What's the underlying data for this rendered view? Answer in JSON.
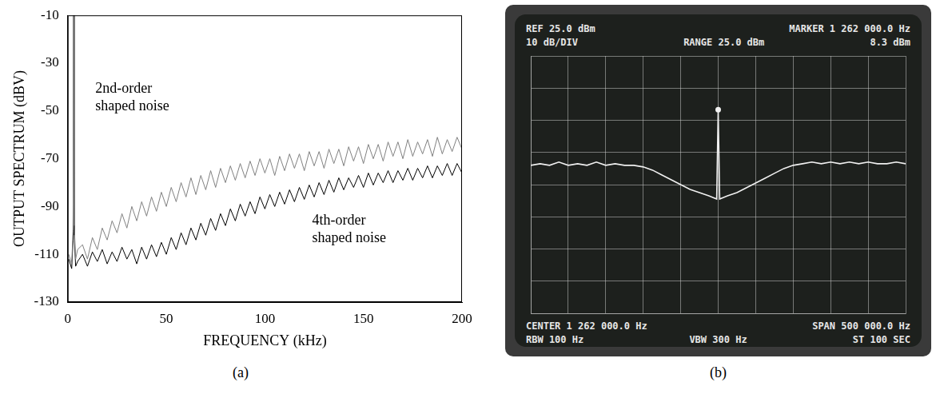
{
  "chart_data": [
    {
      "type": "line",
      "title": "(a)",
      "x_label": "FREQUENCY (kHz)",
      "y_label": "OUTPUT SPECTRUM (dBV)",
      "x": [
        0.5,
        2,
        2.7,
        3,
        3.3,
        4,
        5,
        7.5,
        10,
        12.5,
        15,
        17.5,
        20,
        22.5,
        25,
        27.5,
        30,
        32.5,
        35,
        37.5,
        40,
        42.5,
        45,
        47.5,
        50,
        52.5,
        55,
        57.5,
        60,
        62.5,
        65,
        67.5,
        70,
        72.5,
        75,
        77.5,
        80,
        82.5,
        85,
        87.5,
        90,
        92.5,
        95,
        97.5,
        100,
        102.5,
        105,
        107.5,
        110,
        112.5,
        115,
        117.5,
        120,
        122.5,
        125,
        127.5,
        130,
        132.5,
        135,
        137.5,
        140,
        142.5,
        145,
        147.5,
        150,
        152.5,
        155,
        157.5,
        160,
        162.5,
        165,
        167.5,
        170,
        172.5,
        175,
        177.5,
        180,
        182.5,
        185,
        187.5,
        190,
        192.5,
        195,
        197.5,
        200
      ],
      "series": [
        {
          "name": "2nd-order shaped noise",
          "color": "#808080",
          "values": [
            -110,
            -114,
            -100,
            -10,
            -98,
            -112,
            -108,
            -106,
            -112,
            -103,
            -108,
            -99,
            -104,
            -96,
            -101,
            -93,
            -99,
            -90,
            -96,
            -88,
            -94,
            -86,
            -92,
            -84,
            -90,
            -82,
            -88,
            -80,
            -86,
            -78,
            -85,
            -77,
            -83,
            -75,
            -82,
            -74,
            -80,
            -73,
            -79,
            -72,
            -78,
            -71,
            -77,
            -70,
            -76,
            -70,
            -77,
            -69,
            -75,
            -68,
            -74,
            -68,
            -75,
            -67,
            -73,
            -67,
            -74,
            -66,
            -72,
            -66,
            -73,
            -65,
            -71,
            -65,
            -72,
            -64,
            -70,
            -64,
            -71,
            -63,
            -69,
            -63,
            -70,
            -62,
            -69,
            -63,
            -68,
            -62,
            -69,
            -61,
            -68,
            -62,
            -67,
            -61,
            -66
          ]
        },
        {
          "name": "4th-order shaped noise",
          "color": "#000000",
          "values": [
            -112,
            -116,
            -104,
            -10,
            -102,
            -115,
            -113,
            -110,
            -115,
            -109,
            -113,
            -108,
            -114,
            -109,
            -113,
            -107,
            -112,
            -108,
            -114,
            -107,
            -112,
            -106,
            -111,
            -105,
            -110,
            -103,
            -108,
            -101,
            -106,
            -99,
            -104,
            -97,
            -102,
            -95,
            -100,
            -93,
            -98,
            -91,
            -96,
            -89,
            -94,
            -88,
            -93,
            -86,
            -91,
            -85,
            -90,
            -84,
            -89,
            -83,
            -88,
            -82,
            -87,
            -81,
            -86,
            -80,
            -85,
            -79,
            -84,
            -78,
            -83,
            -78,
            -82,
            -77,
            -82,
            -76,
            -81,
            -76,
            -80,
            -75,
            -80,
            -75,
            -79,
            -74,
            -79,
            -74,
            -78,
            -73,
            -78,
            -73,
            -77,
            -72,
            -77,
            -72,
            -76
          ]
        }
      ],
      "xlim": [
        0,
        200
      ],
      "xticks": [
        0,
        50,
        100,
        150,
        200
      ],
      "ylim": [
        -130,
        -10
      ],
      "yticks": [
        -130,
        -110,
        -90,
        -70,
        -50,
        -30,
        -10
      ],
      "grid": false
    },
    {
      "type": "line",
      "title": "(b)",
      "annotations": [
        [
          "REF 25.0 dBm",
          "MARKER 1 262 000.0 Hz"
        ],
        [
          "10 dB/DIV",
          "RANGE 25.0 dBm",
          "8.3 dBm"
        ],
        [
          "CENTER 1 262 000.0 Hz",
          "SPAN 500 000.0 Hz"
        ],
        [
          "RBW 100 Hz",
          "VBW 300 Hz",
          "ST 100 SEC"
        ]
      ],
      "x": [
        1012000,
        1024500,
        1037000,
        1049500,
        1062000,
        1074500,
        1087000,
        1099500,
        1112000,
        1124500,
        1137000,
        1149500,
        1162000,
        1174500,
        1187000,
        1199500,
        1212000,
        1224500,
        1237000,
        1249500,
        1260000,
        1262000,
        1264000,
        1274500,
        1287000,
        1299500,
        1312000,
        1324500,
        1337000,
        1349500,
        1362000,
        1374500,
        1387000,
        1399500,
        1412000,
        1424500,
        1437000,
        1449500,
        1462000,
        1474500,
        1487000,
        1499500,
        1512000
      ],
      "values": [
        -9,
        -8.5,
        -9,
        -8,
        -9,
        -8.5,
        -9,
        -8,
        -9,
        -8.5,
        -9,
        -9,
        -9.5,
        -10.5,
        -12,
        -13.5,
        -15,
        -16.5,
        -17.5,
        -18.5,
        -19.5,
        8.3,
        -19.5,
        -18.5,
        -17.5,
        -16,
        -14.5,
        -13,
        -11.5,
        -10,
        -9,
        -8.5,
        -8,
        -8.5,
        -8,
        -8.5,
        -8,
        -8.5,
        -8,
        -8.5,
        -8.5,
        -8,
        -8.5
      ],
      "color": "#f0f0f0",
      "xlim": [
        1012000,
        1512000
      ],
      "xticks": [
        1012000,
        1062000,
        1112000,
        1162000,
        1212000,
        1262000,
        1312000,
        1362000,
        1412000,
        1462000,
        1512000
      ],
      "ylim": [
        -55,
        25
      ],
      "yticks": [
        -55,
        -45,
        -35,
        -25,
        -15,
        -5,
        5,
        15,
        25
      ],
      "grid": true,
      "tick_labels": false
    }
  ]
}
